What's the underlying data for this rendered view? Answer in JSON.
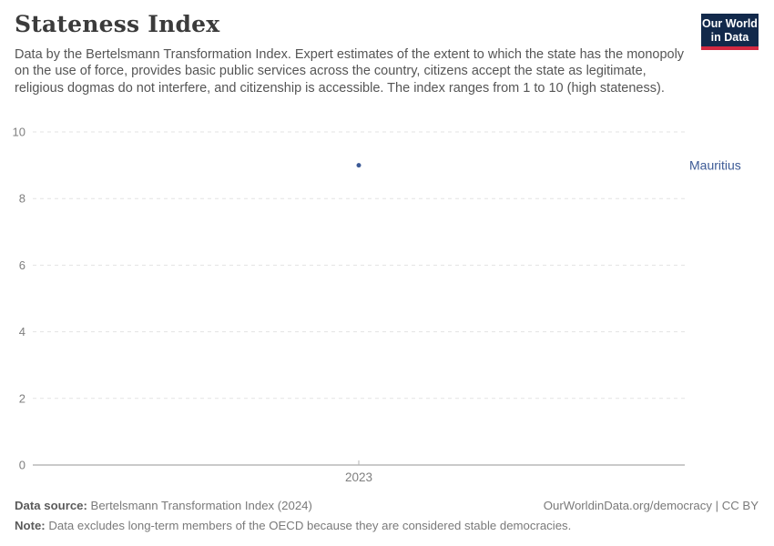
{
  "header": {
    "title": "Stateness Index",
    "subtitle": "Data by the Bertelsmann Transformation Index. Expert estimates of the extent to which the state has the monopoly on the use of force, provides basic public services across the country, citizens accept the state as legitimate, religious dogmas do not interfere, and citizenship is accessible. The index ranges from 1 to 10 (high stateness).",
    "logo": {
      "line1": "Our World",
      "line2": "in Data",
      "bg_color": "#12294b",
      "accent_color": "#d32941"
    }
  },
  "chart_data": {
    "type": "scatter",
    "title": "Stateness Index",
    "x": [
      2023
    ],
    "xtick_labels": [
      "2023"
    ],
    "series": [
      {
        "name": "Mauritius",
        "values": [
          9.0
        ],
        "color": "#3c5a96"
      }
    ],
    "ylim": [
      0,
      10
    ],
    "yticks": [
      0,
      2,
      4,
      6,
      8,
      10
    ],
    "grid": "horizontal-dashed",
    "legend_position": "right-entity-label",
    "colors": {
      "gridline": "#e3e3e3",
      "axis_line": "#969696",
      "tick_label": "#7f7f7f",
      "x_tick": "#b3b3b3"
    }
  },
  "footer": {
    "datasource_label": "Data source:",
    "datasource_text": " Bertelsmann Transformation Index (2024)",
    "attribution": "OurWorldinData.org/democracy | CC BY",
    "note_label": "Note:",
    "note_text": " Data excludes long-term members of the OECD because they are considered stable democracies."
  }
}
